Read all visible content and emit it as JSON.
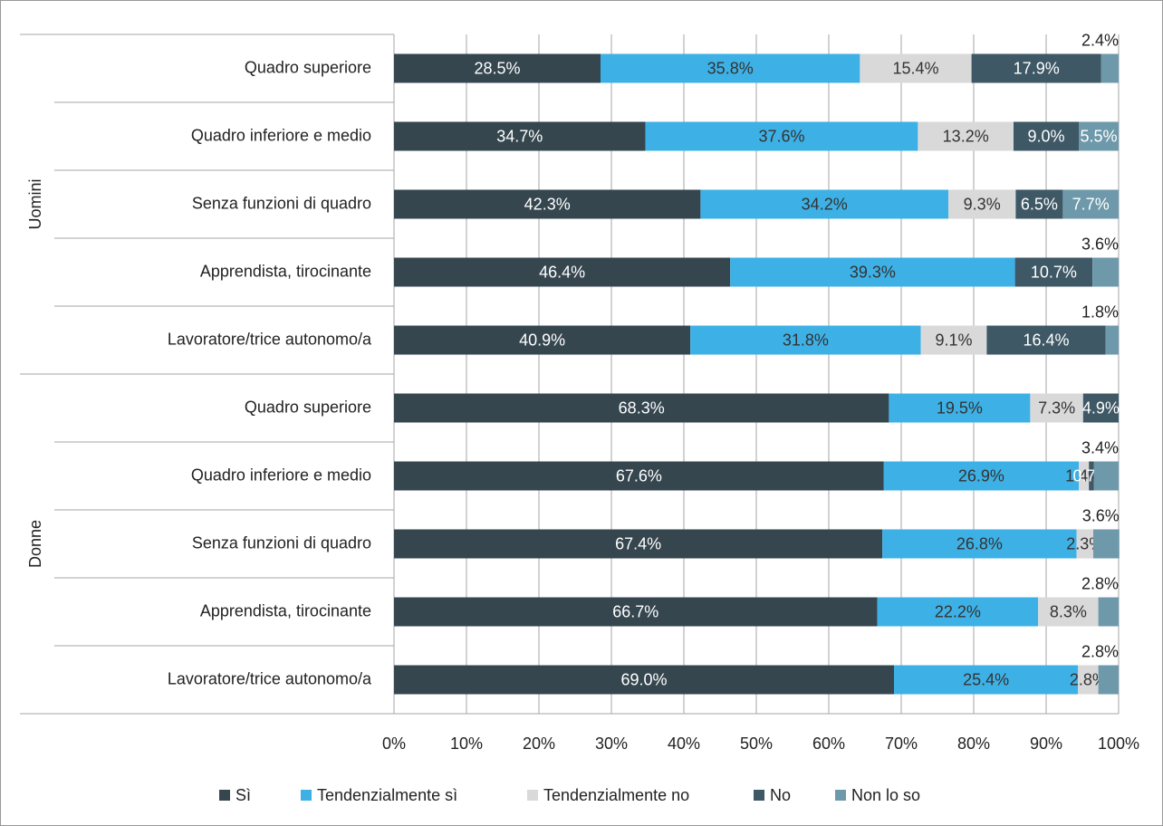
{
  "chart_data": {
    "type": "stacked-bar-horizontal",
    "groups": [
      {
        "name": "Uomini",
        "categories": [
          "Quadro superiore",
          "Quadro inferiore e medio",
          "Senza funzioni di quadro",
          "Apprendista, tirocinante",
          "Lavoratore/trice autonomo/a"
        ]
      },
      {
        "name": "Donne",
        "categories": [
          "Quadro superiore",
          "Quadro inferiore e medio",
          "Senza funzioni di quadro",
          "Apprendista, tirocinante",
          "Lavoratore/trice autonomo/a"
        ]
      }
    ],
    "series": [
      {
        "name": "Sì",
        "color": "#35464f",
        "values": [
          28.5,
          34.7,
          42.3,
          46.4,
          40.9,
          68.3,
          67.6,
          67.4,
          66.7,
          69.0
        ],
        "value_labels": [
          "28.5%",
          "34.7%",
          "42.3%",
          "46.4%",
          "40.9%",
          "68.3%",
          "67.6%",
          "67.4%",
          "66.7%",
          "69.0%"
        ]
      },
      {
        "name": "Tendenzialmente sì",
        "color": "#3db1e6",
        "values": [
          35.8,
          37.6,
          34.2,
          39.3,
          31.8,
          19.5,
          26.9,
          26.8,
          22.2,
          25.4
        ],
        "value_labels": [
          "35.8%",
          "37.6%",
          "34.2%",
          "39.3%",
          "31.8%",
          "19.5%",
          "26.9%",
          "26.8%",
          "22.2%",
          "25.4%"
        ]
      },
      {
        "name": "Tendenzialmente no",
        "color": "#d9d9d9",
        "values": [
          15.4,
          13.2,
          9.3,
          null,
          9.1,
          7.3,
          1.4,
          2.3,
          8.3,
          2.8
        ],
        "value_labels": [
          "15.4%",
          "13.2%",
          "9.3%",
          null,
          "9.1%",
          "7.3%",
          "1.4%",
          "2.3%",
          "8.3%",
          "2.8%"
        ]
      },
      {
        "name": "No",
        "color": "#3e5866",
        "values": [
          17.9,
          9.0,
          6.5,
          10.7,
          16.4,
          4.9,
          0.7,
          null,
          null,
          null
        ],
        "value_labels": [
          "17.9%",
          "9.0%",
          "6.5%",
          "10.7%",
          "16.4%",
          "4.9%",
          "0.7%",
          null,
          null,
          null
        ]
      },
      {
        "name": "Non lo so",
        "color": "#6e99ab",
        "values": [
          2.4,
          5.5,
          7.7,
          3.6,
          1.8,
          null,
          3.4,
          3.6,
          2.8,
          2.8
        ],
        "value_labels": [
          "2.4%",
          "5.5%",
          "7.7%",
          "3.6%",
          "1.8%",
          null,
          "3.4%",
          "3.6%",
          "2.8%",
          "2.8%"
        ]
      }
    ],
    "xlim": [
      0,
      100
    ],
    "xticks": [
      {
        "value": 0,
        "label": "0%"
      },
      {
        "value": 10,
        "label": "10%"
      },
      {
        "value": 20,
        "label": "20%"
      },
      {
        "value": 30,
        "label": "30%"
      },
      {
        "value": 40,
        "label": "40%"
      },
      {
        "value": 50,
        "label": "50%"
      },
      {
        "value": 60,
        "label": "60%"
      },
      {
        "value": 70,
        "label": "70%"
      },
      {
        "value": 80,
        "label": "80%"
      },
      {
        "value": 90,
        "label": "90%"
      },
      {
        "value": 100,
        "label": "100%"
      }
    ],
    "grid": true,
    "legend": "bottom"
  }
}
